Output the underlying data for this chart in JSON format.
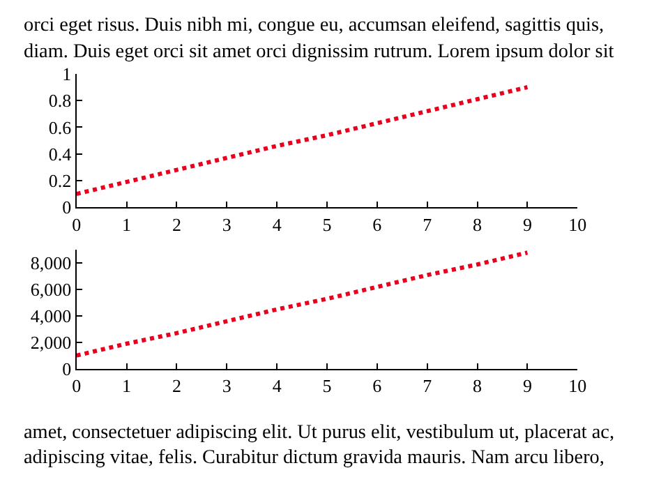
{
  "chart_data": [
    {
      "type": "line",
      "x": [
        0,
        1,
        2,
        3,
        4,
        5,
        6,
        7,
        8,
        9
      ],
      "series": [
        {
          "color": "#e8001c",
          "values": [
            0.1,
            0.19,
            0.28,
            0.37,
            0.46,
            0.54,
            0.63,
            0.72,
            0.81,
            0.9
          ]
        }
      ],
      "xlim": [
        0,
        10
      ],
      "xticks": [
        0,
        1,
        2,
        3,
        4,
        5,
        6,
        7,
        8,
        9,
        10
      ],
      "ylim": [
        0,
        1
      ],
      "yticks": [
        0,
        0.2,
        0.4,
        0.6,
        0.8,
        1
      ],
      "marker": "none",
      "line_style": "dotted",
      "annotations": [
        "orci eget risus. Duis nibh mi, congue eu, accumsan eleifend, sagittis quis,",
        "diam. Duis eget orci sit amet orci dignissim rutrum. Lorem ipsum dolor sit"
      ]
    },
    {
      "type": "line",
      "x": [
        0,
        1,
        2,
        3,
        4,
        5,
        6,
        7,
        8,
        9
      ],
      "series": [
        {
          "color": "#e8001c",
          "values": [
            1000,
            1900,
            2700,
            3600,
            4500,
            5300,
            6200,
            7100,
            7900,
            8800
          ]
        }
      ],
      "xlim": [
        0,
        10
      ],
      "xticks": [
        0,
        1,
        2,
        3,
        4,
        5,
        6,
        7,
        8,
        9,
        10
      ],
      "ylim": [
        0,
        9000
      ],
      "yticks": [
        0,
        {
          "value": 2000,
          "label": "2,000"
        },
        {
          "value": 4000,
          "label": "4,000"
        },
        {
          "value": 6000,
          "label": "6,000"
        },
        {
          "value": 8000,
          "label": "8,000"
        }
      ],
      "marker": "none",
      "line_style": "dotted",
      "annotations": [
        "amet, consectetuer adipiscing elit. Ut purus elit, vestibulum ut, placerat ac,",
        "adipiscing vitae, felis. Curabitur dictum gravida mauris. Nam arcu libero,"
      ]
    }
  ]
}
